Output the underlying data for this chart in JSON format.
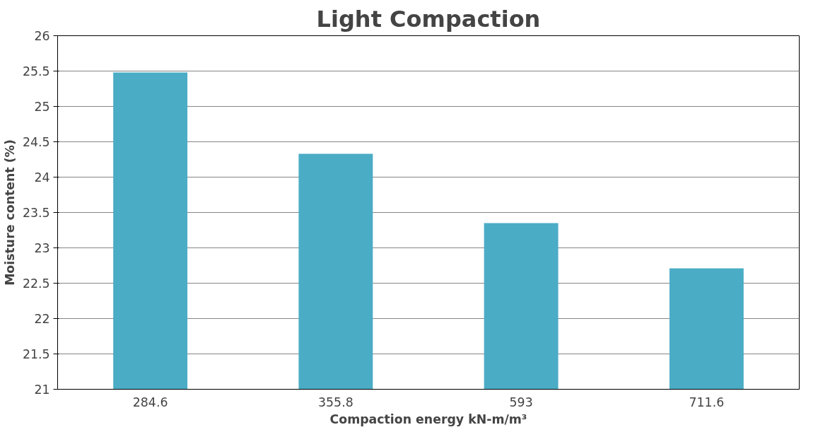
{
  "chart_data": {
    "type": "bar",
    "title": "Light Compaction",
    "xlabel": "Compaction energy kN-m/m³",
    "ylabel": "Moisture content (%)",
    "categories": [
      "284.6",
      "355.8",
      "593",
      "711.6"
    ],
    "values": [
      25.48,
      24.33,
      23.35,
      22.71
    ],
    "color": "#4bacc6",
    "ylim": [
      21,
      26
    ],
    "yticks": [
      21,
      21.5,
      22,
      22.5,
      23,
      23.5,
      24,
      24.5,
      25,
      25.5,
      26
    ],
    "grid": "y"
  }
}
